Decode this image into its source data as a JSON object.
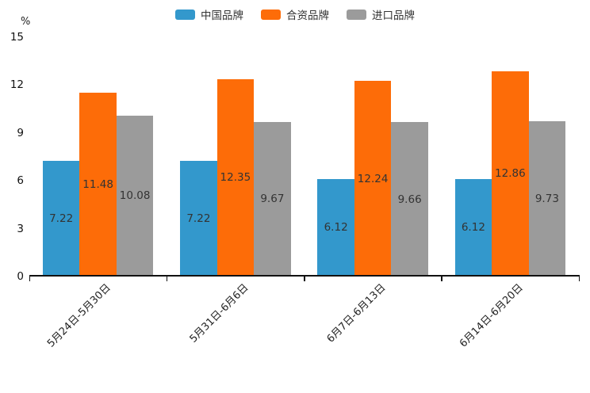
{
  "chart_data": {
    "type": "bar",
    "title": "",
    "ylabel": "%",
    "xlabel": "",
    "ylim": [
      0,
      15
    ],
    "yticks": [
      0,
      3,
      6,
      9,
      12,
      15
    ],
    "grid": false,
    "legend_position": "top",
    "value_labels": "inside-center",
    "categories": [
      "5月24日-5月30日",
      "5月31日-6月6日",
      "6月7日-6月13日",
      "6月14日-6月20日"
    ],
    "series": [
      {
        "name": "中国品牌",
        "color": "#3398CC",
        "values": [
          7.22,
          7.22,
          6.12,
          6.12
        ]
      },
      {
        "name": "合资品牌",
        "color": "#FD6C08",
        "values": [
          11.48,
          12.35,
          12.24,
          12.86
        ]
      },
      {
        "name": "进口品牌",
        "color": "#9B9B9B",
        "values": [
          10.08,
          9.67,
          9.66,
          9.73
        ]
      }
    ],
    "colors": {
      "axis": "#111111",
      "tick_label": "#111111",
      "value_label": "#333333",
      "background": "#ffffff"
    }
  }
}
